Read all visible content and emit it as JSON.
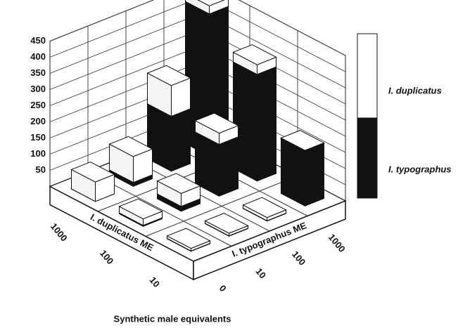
{
  "chart_data": {
    "type": "bar3d",
    "xlabel": "Synthetic male equivalents",
    "categories": [
      "0",
      "10",
      "100",
      "1000"
    ],
    "categories_label": "I. typographus ME",
    "groups": [
      "10",
      "100",
      "1000"
    ],
    "groups_label": "I. duplicatus ME",
    "series": [
      {
        "name": "I. typographus",
        "color": "#111111",
        "values": [
          [
            1,
            1,
            1,
            170
          ],
          [
            3,
            15,
            160,
            330
          ],
          [
            0,
            12,
            170,
            440
          ]
        ]
      },
      {
        "name": "I. duplicatus",
        "color": "#ffffff",
        "values": [
          [
            8,
            8,
            10,
            2
          ],
          [
            20,
            40,
            35,
            30
          ],
          [
            60,
            80,
            95,
            25
          ]
        ]
      }
    ],
    "ylim": [
      0,
      450
    ],
    "yticks": [
      50,
      100,
      150,
      200,
      250,
      300,
      350,
      400,
      450
    ],
    "grid": true
  }
}
